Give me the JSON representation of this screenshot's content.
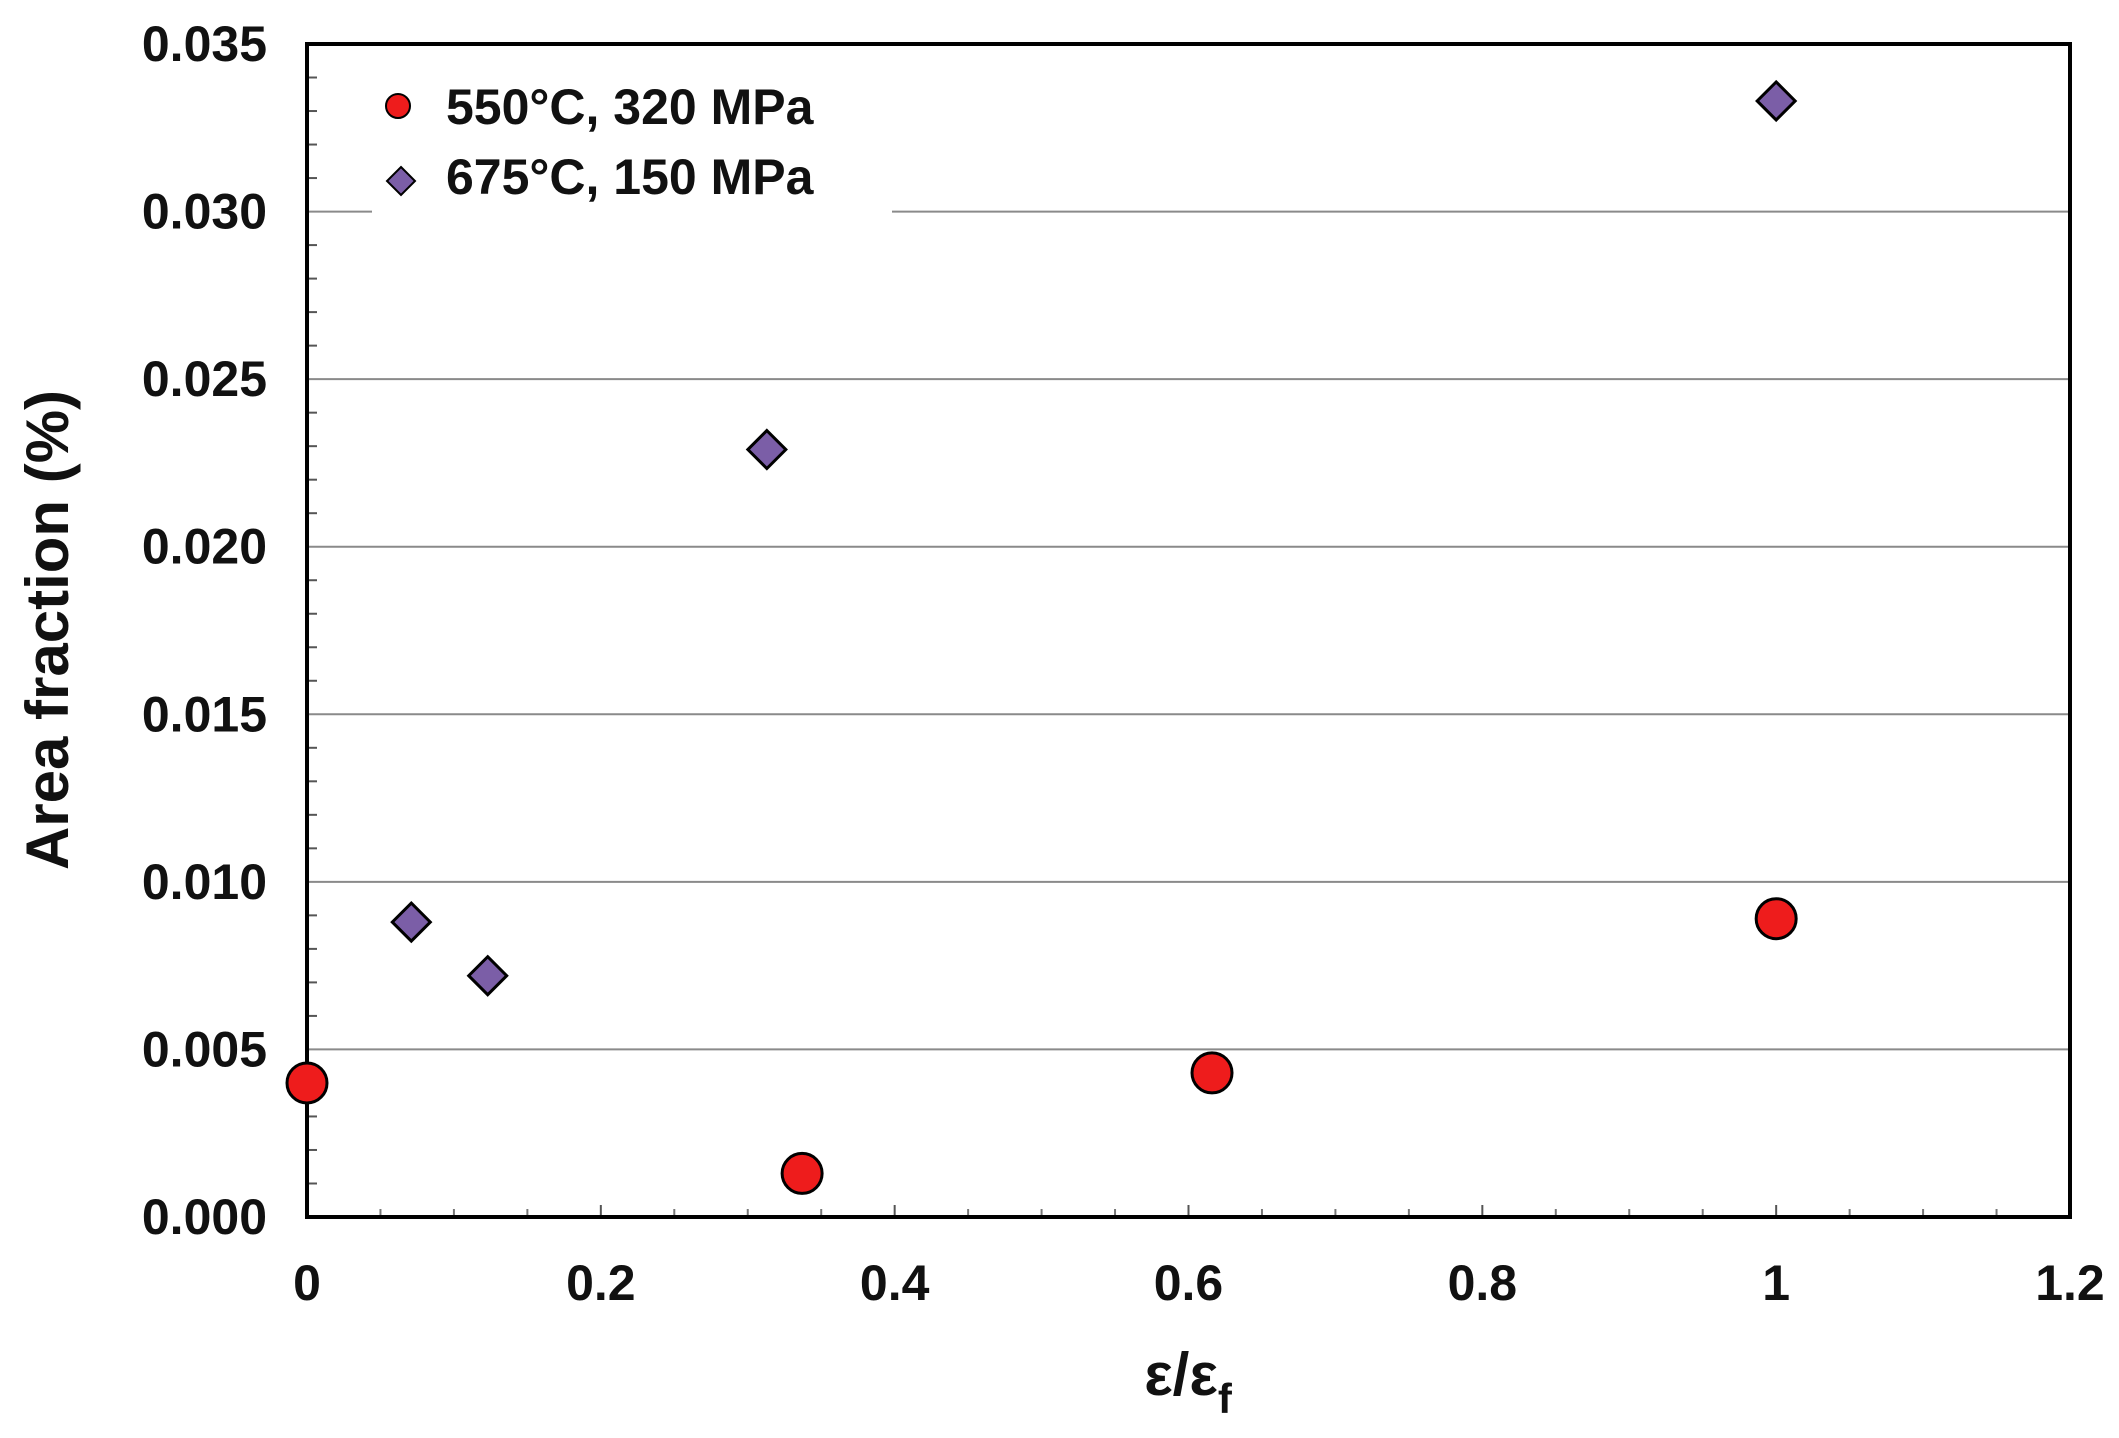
{
  "chart_data": {
    "type": "scatter",
    "title": "",
    "xlabel": "ε/ε",
    "xlabel_subscript": "f",
    "ylabel": "Area fraction (%)",
    "xlim": [
      0,
      1.2
    ],
    "ylim": [
      0,
      0.035
    ],
    "x_ticks": [
      "0",
      "0.2",
      "0.4",
      "0.6",
      "0.8",
      "1",
      "1.2"
    ],
    "y_ticks": [
      "0.000",
      "0.005",
      "0.010",
      "0.015",
      "0.020",
      "0.025",
      "0.030",
      "0.035"
    ],
    "grid": "horizontal",
    "legend_position": "top-left",
    "series": [
      {
        "name": "550°C, 320 MPa",
        "marker": "circle",
        "color": "#ee1c1c",
        "points": [
          {
            "x": 0.0,
            "y": 0.004
          },
          {
            "x": 0.337,
            "y": 0.0013
          },
          {
            "x": 0.616,
            "y": 0.0043
          },
          {
            "x": 1.0,
            "y": 0.0089
          }
        ]
      },
      {
        "name": "675°C, 150 MPa",
        "marker": "diamond",
        "color": "#7b5ea7",
        "points": [
          {
            "x": 0.071,
            "y": 0.0088
          },
          {
            "x": 0.123,
            "y": 0.0072
          },
          {
            "x": 0.313,
            "y": 0.0229
          },
          {
            "x": 1.0,
            "y": 0.0333
          }
        ]
      }
    ]
  }
}
